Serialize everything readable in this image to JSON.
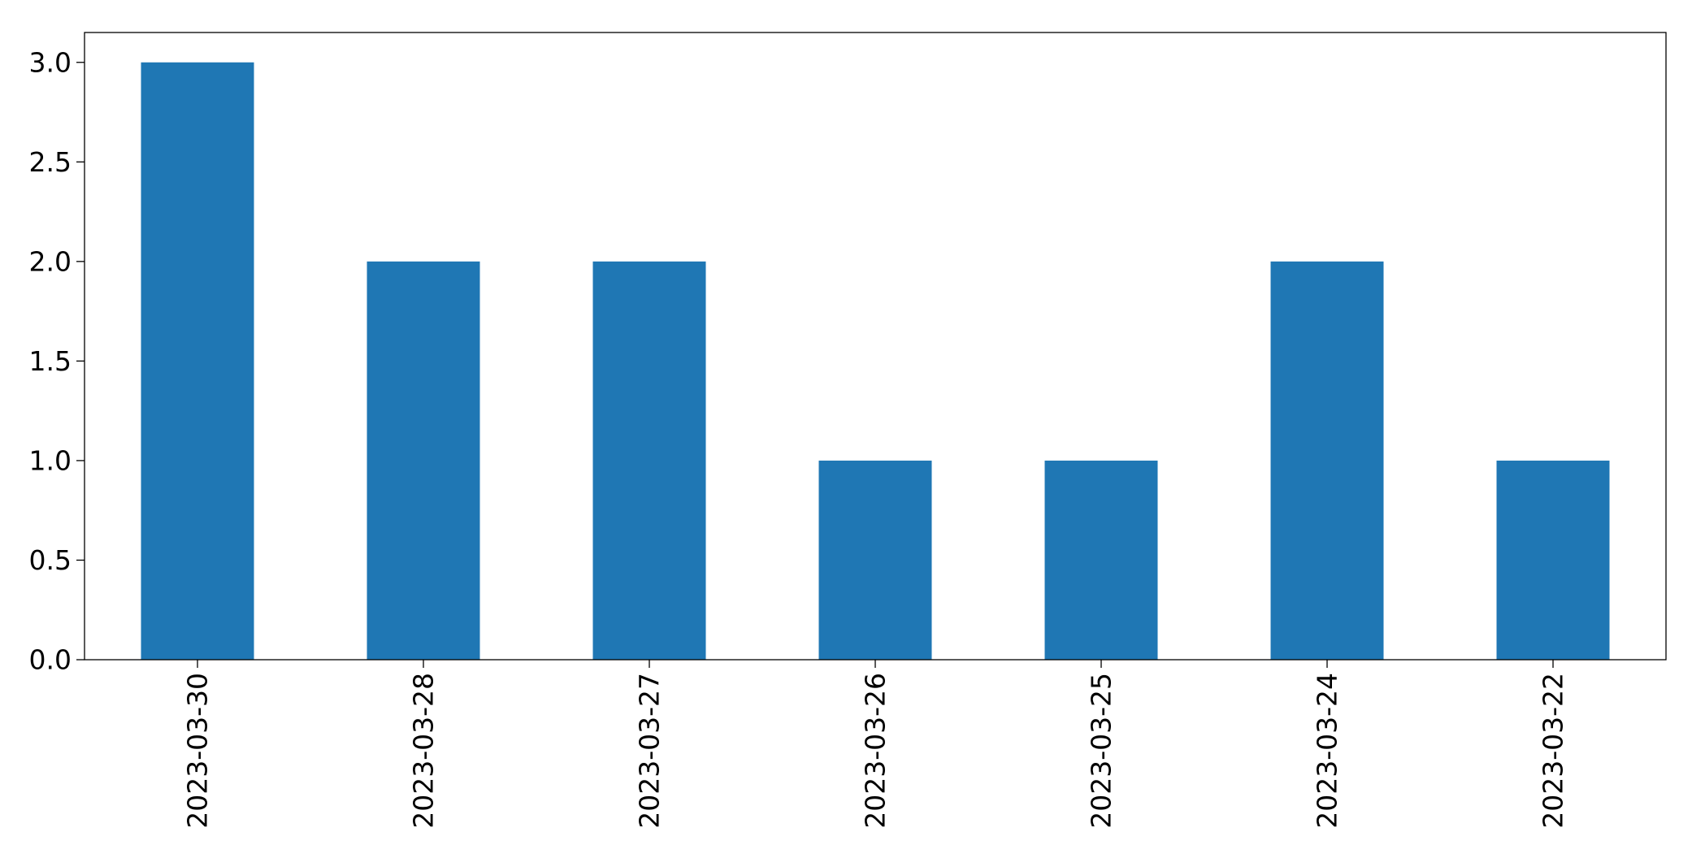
{
  "chart_data": {
    "type": "bar",
    "title": "",
    "xlabel": "",
    "ylabel": "",
    "categories": [
      "2023-03-30",
      "2023-03-28",
      "2023-03-27",
      "2023-03-26",
      "2023-03-25",
      "2023-03-24",
      "2023-03-22"
    ],
    "values": [
      3,
      2,
      2,
      1,
      1,
      2,
      1
    ],
    "ylim": [
      0,
      3.15
    ],
    "yticks": [
      0.0,
      0.5,
      1.0,
      1.5,
      2.0,
      2.5,
      3.0
    ],
    "ytick_labels": [
      "0.0",
      "0.5",
      "1.0",
      "1.5",
      "2.0",
      "2.5",
      "3.0"
    ],
    "bar_color": "#1f77b4",
    "grid": false,
    "legend": "none"
  }
}
